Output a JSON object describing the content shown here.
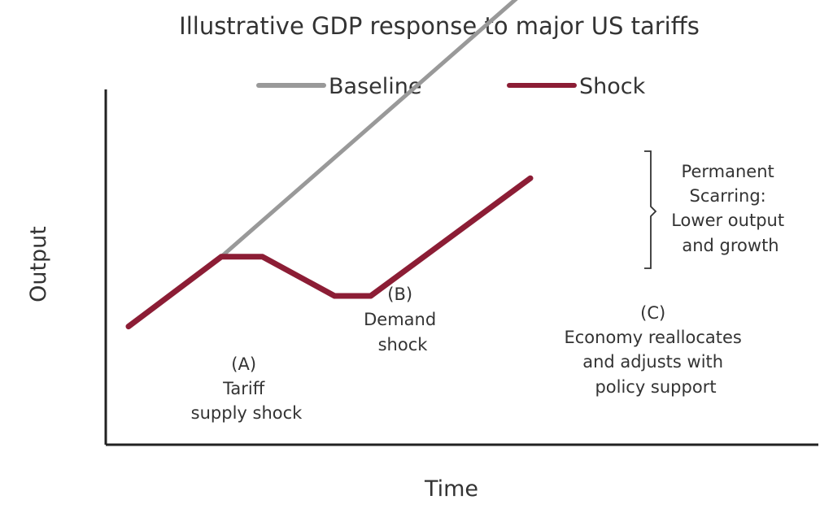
{
  "chart_data": {
    "type": "line",
    "title": "Illustrative GDP response to major US tariffs",
    "xlabel": "Time",
    "ylabel": "Output",
    "xlim": [
      0,
      10
    ],
    "ylim": [
      0,
      10
    ],
    "grid": false,
    "legend_position": "top",
    "series": [
      {
        "name": "Baseline",
        "color": "#999999",
        "x": [
          1.8,
          7.8
        ],
        "y": [
          3.1,
          9.3
        ]
      },
      {
        "name": "Shock",
        "color": "#8c1d35",
        "x": [
          0,
          1.8,
          2.6,
          4.0,
          4.7,
          7.8
        ],
        "y": [
          1.5,
          3.1,
          3.1,
          2.2,
          2.2,
          4.9
        ]
      }
    ],
    "annotations": [
      {
        "id": "a",
        "lines": [
          "(A)",
          "Tariff",
          "supply shock"
        ]
      },
      {
        "id": "b",
        "lines": [
          "(B)",
          "Demand",
          "shock"
        ]
      },
      {
        "id": "c",
        "lines": [
          "(C)",
          "Economy reallocates",
          "and adjusts with",
          "policy support"
        ]
      },
      {
        "id": "scar",
        "lines": [
          "Permanent",
          "Scarring:",
          "Lower output",
          "and growth"
        ]
      }
    ]
  }
}
